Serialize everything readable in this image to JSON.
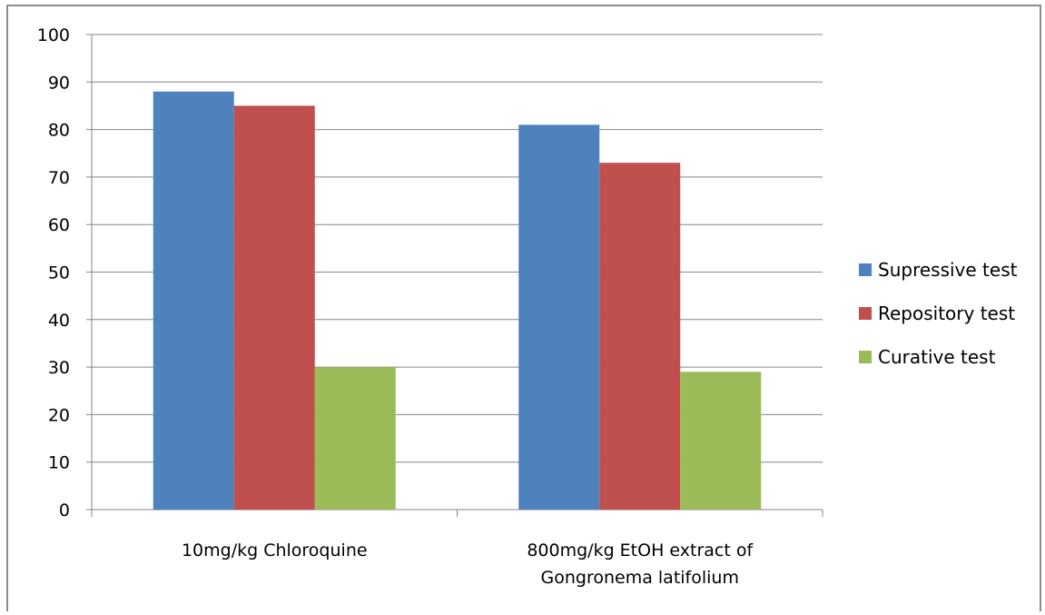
{
  "chart_data": {
    "type": "bar",
    "title": "",
    "xlabel": "",
    "ylabel": "",
    "ylim": [
      0,
      100
    ],
    "yticks": [
      0,
      10,
      20,
      30,
      40,
      50,
      60,
      70,
      80,
      90,
      100
    ],
    "categories": [
      [
        "10mg/kg Chloroquine"
      ],
      [
        "800mg/kg EtOH extract of",
        "Gongronema latifolium"
      ]
    ],
    "series": [
      {
        "name": "Supressive test",
        "color": "#4F81BD",
        "values": [
          88,
          81
        ]
      },
      {
        "name": "Repository test",
        "color": "#C0504D",
        "values": [
          85,
          73
        ]
      },
      {
        "name": "Curative test",
        "color": "#9BBB59",
        "values": [
          30,
          29
        ]
      }
    ],
    "grid": true,
    "legend_position": "right"
  }
}
